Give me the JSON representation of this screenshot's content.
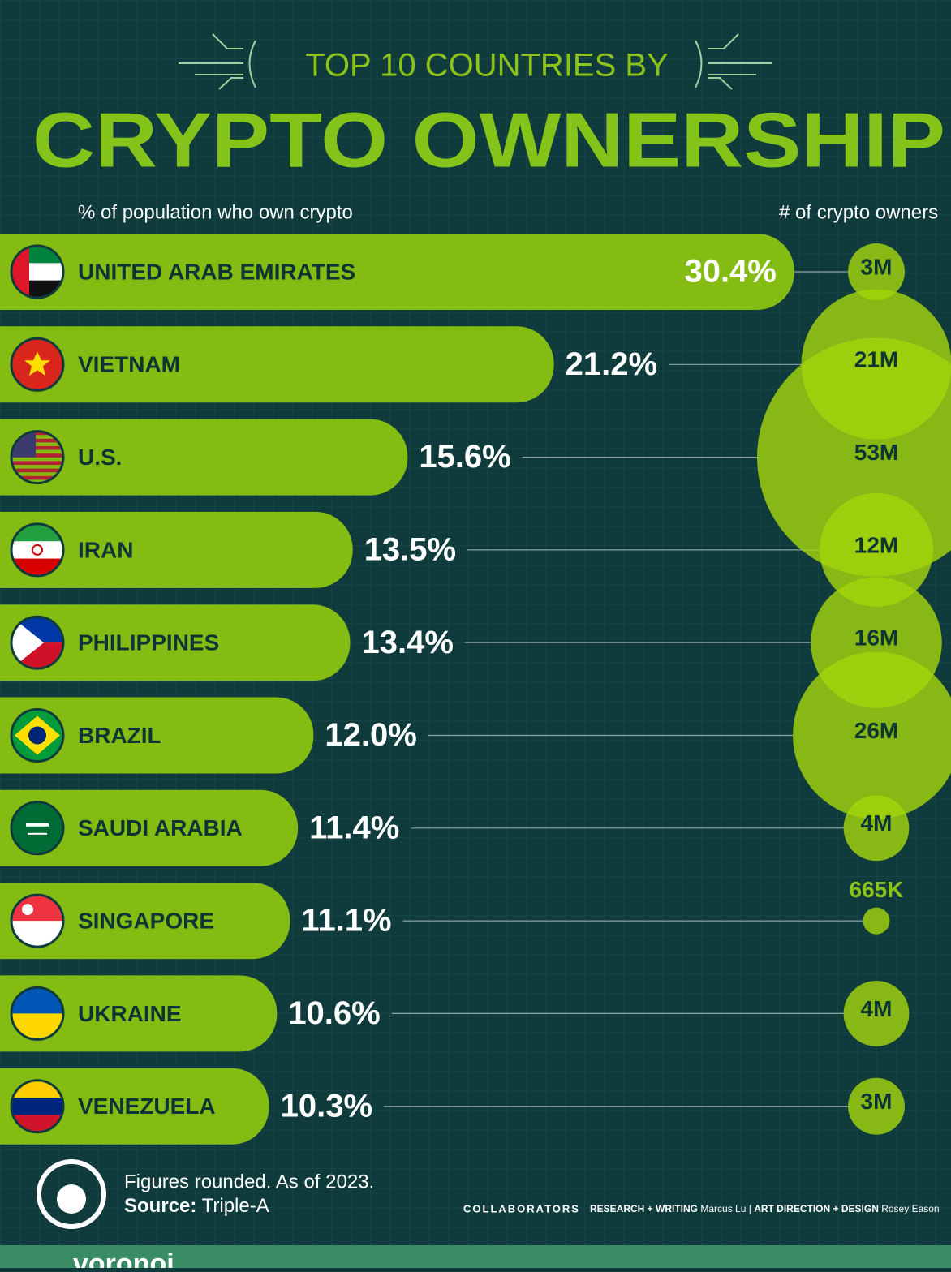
{
  "chart_data": {
    "type": "bar",
    "supertitle": "TOP 10 COUNTRIES BY",
    "title": "CRYPTO OWNERSHIP",
    "subtitle": "% of population who own crypto",
    "subtitle2": "# of crypto owners",
    "categories": [
      "UNITED ARAB EMIRATES",
      "VIETNAM",
      "U.S.",
      "IRAN",
      "PHILIPPINES",
      "BRAZIL",
      "SAUDI ARABIA",
      "SINGAPORE",
      "UKRAINE",
      "VENEZUELA"
    ],
    "values": [
      30.4,
      21.2,
      15.6,
      13.5,
      13.4,
      12.0,
      11.4,
      11.1,
      10.6,
      10.3
    ],
    "value_labels": [
      "30.4%",
      "21.2%",
      "15.6%",
      "13.5%",
      "13.4%",
      "12.0%",
      "11.4%",
      "11.1%",
      "10.6%",
      "10.3%"
    ],
    "color": "#84bc13",
    "owners": {
      "values": [
        3000000,
        21000000,
        53000000,
        12000000,
        16000000,
        26000000,
        4000000,
        665000,
        4000000,
        3000000
      ],
      "value_labels": [
        "3M",
        "21M",
        "53M",
        "12M",
        "16M",
        "26M",
        "4M",
        "665K",
        "4M",
        "3M"
      ],
      "color": "#a2d40c"
    }
  },
  "footer": {
    "note": "Figures rounded. As of 2023.",
    "source_label": "Source:",
    "source": "Triple-A",
    "collaborators": "COLLABORATORS",
    "role1": "RESEARCH + WRITING",
    "name1": "Marcus Lu",
    "role2": "ART DIRECTION + DESIGN",
    "name2": "Rosey Eason",
    "brand": "voronoi"
  }
}
